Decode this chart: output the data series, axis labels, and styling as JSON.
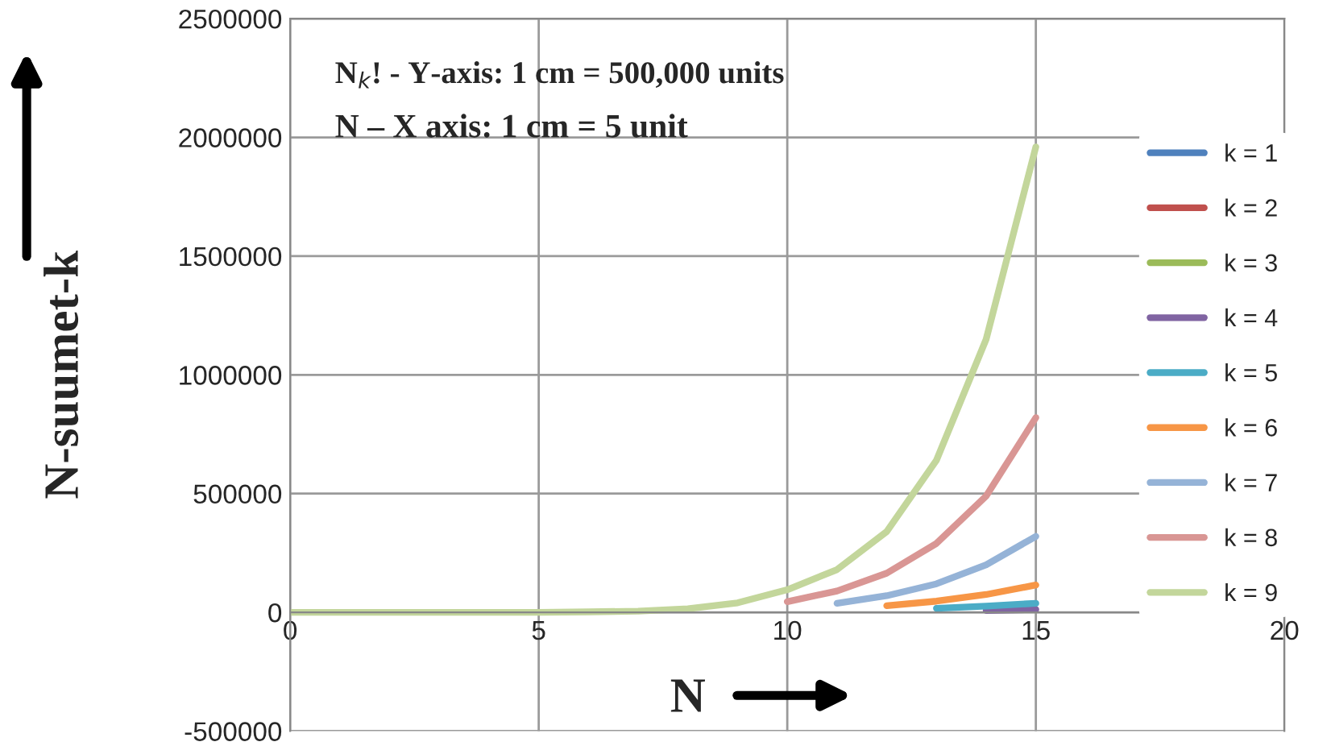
{
  "chart_data": {
    "type": "line",
    "xlabel": "N",
    "ylabel": "N-suumet-k",
    "annotations": [
      "N$_{k}$! - Y-axis: 1 cm = 500,000 units",
      "N – X axis: 1 cm = 5 unit"
    ],
    "x": [
      0,
      1,
      2,
      3,
      4,
      5,
      6,
      7,
      8,
      9,
      10,
      11,
      12,
      13,
      14,
      15
    ],
    "series": [
      {
        "name": "k = 1",
        "color": "#4f81bd",
        "values": [
          null,
          null,
          null,
          null,
          null,
          null,
          null,
          null,
          null,
          null,
          null,
          null,
          null,
          null,
          null,
          null
        ]
      },
      {
        "name": "k = 2",
        "color": "#c0504d",
        "values": [
          null,
          null,
          null,
          null,
          null,
          null,
          null,
          null,
          null,
          null,
          null,
          null,
          null,
          null,
          null,
          null
        ]
      },
      {
        "name": "k = 3",
        "color": "#9bbb59",
        "values": [
          null,
          null,
          null,
          null,
          null,
          null,
          null,
          null,
          null,
          null,
          null,
          null,
          null,
          null,
          null,
          null
        ]
      },
      {
        "name": "k = 4",
        "color": "#8064a2",
        "values": [
          null,
          null,
          null,
          null,
          null,
          null,
          null,
          null,
          null,
          null,
          null,
          null,
          null,
          null,
          8000,
          12000
        ]
      },
      {
        "name": "k = 5",
        "color": "#4bacc6",
        "values": [
          null,
          null,
          null,
          null,
          null,
          null,
          null,
          null,
          null,
          null,
          null,
          null,
          null,
          17000,
          26000,
          38000
        ]
      },
      {
        "name": "k = 6",
        "color": "#f79646",
        "values": [
          null,
          null,
          null,
          null,
          null,
          null,
          null,
          null,
          null,
          null,
          null,
          null,
          28000,
          47000,
          75000,
          115000
        ]
      },
      {
        "name": "k = 7",
        "color": "#95b3d7",
        "values": [
          null,
          null,
          null,
          null,
          null,
          null,
          null,
          null,
          null,
          null,
          null,
          38000,
          70000,
          120000,
          200000,
          320000
        ]
      },
      {
        "name": "k = 8",
        "color": "#d99694",
        "values": [
          null,
          null,
          null,
          null,
          null,
          null,
          null,
          null,
          null,
          null,
          45000,
          90000,
          165000,
          290000,
          490000,
          820000
        ]
      },
      {
        "name": "k = 9",
        "color": "#c3d69b",
        "values": [
          0,
          0,
          0,
          0,
          0,
          0,
          2000,
          5000,
          15000,
          40000,
          95000,
          180000,
          340000,
          640000,
          1150000,
          1960000
        ]
      }
    ],
    "xlim": [
      0,
      20
    ],
    "xticks": [
      0,
      5,
      10,
      15,
      20
    ],
    "ylim": [
      -500000,
      2500000
    ],
    "yticks": [
      -500000,
      0,
      500000,
      1000000,
      1500000,
      2000000,
      2500000
    ],
    "grid": true,
    "legend": "right",
    "marker": "none",
    "line_style": "solid"
  }
}
